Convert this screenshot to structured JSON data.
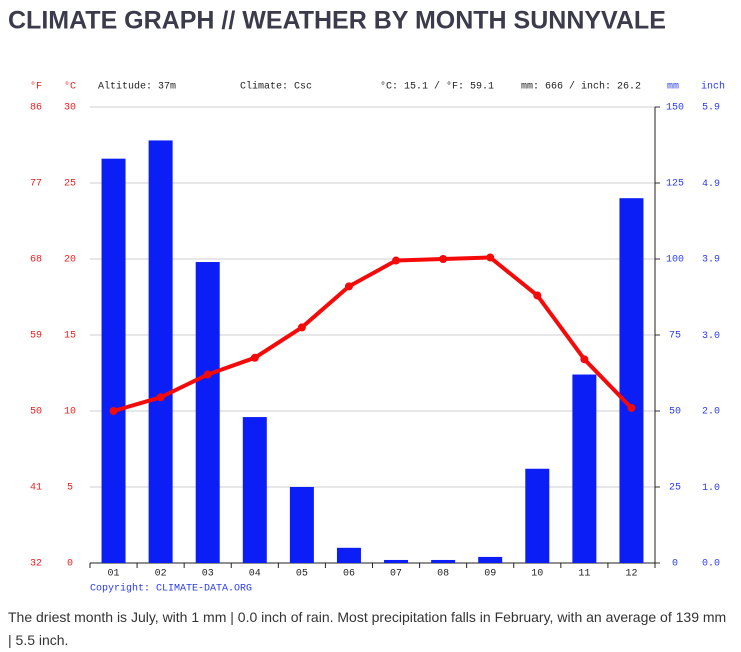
{
  "chart_data": {
    "type": "bar-line",
    "title": "CLIMATE GRAPH // WEATHER BY MONTH SUNNYVALE",
    "annotations": [
      "Altitude: 37m",
      "Climate: Csc",
      "°C: 15.1 / °F: 59.1",
      "mm: 666 / inch: 26.2"
    ],
    "y_label": "°C",
    "y2_label": "mm",
    "yf_label": "°F",
    "yinch_label": "inch",
    "categories": [
      "01",
      "02",
      "03",
      "04",
      "05",
      "06",
      "07",
      "08",
      "09",
      "10",
      "11",
      "12"
    ],
    "series": [
      {
        "type": "bar",
        "axis": "y2",
        "color": "#0a1ef5",
        "values": [
          133,
          139,
          99,
          48,
          25,
          5,
          1,
          1,
          2,
          31,
          62,
          120
        ]
      },
      {
        "type": "line",
        "axis": "y",
        "color": "#f50a0a",
        "values": [
          10.0,
          10.9,
          12.4,
          13.5,
          15.5,
          18.2,
          19.9,
          20.0,
          20.1,
          17.6,
          13.4,
          10.2
        ]
      }
    ],
    "ylim": [
      0,
      30
    ],
    "yticks": [
      0,
      5,
      10,
      15,
      20,
      25,
      30
    ],
    "y2lim": [
      0,
      150
    ],
    "y2ticks": [
      0,
      25,
      50,
      75,
      100,
      125,
      150
    ],
    "yf_lim": [
      32,
      86
    ],
    "yf_ticks": [
      32,
      41,
      50,
      59,
      68,
      77,
      86
    ],
    "yinch_lim": [
      0,
      5.906
    ],
    "yinch_ticks": [
      {
        "value": 0,
        "label": "0.0"
      },
      {
        "value": 0.98,
        "label": "1.0"
      },
      {
        "value": 1.97,
        "label": "2.0"
      },
      {
        "value": 2.95,
        "label": "3.0"
      },
      {
        "value": 3.94,
        "label": "3.9"
      },
      {
        "value": 4.92,
        "label": "4.9"
      },
      {
        "value": 5.91,
        "label": "5.9"
      }
    ],
    "grid": true,
    "copyright": "Copyright: CLIMATE-DATA.ORG"
  },
  "description": "The driest month is July, with 1 mm | 0.0 inch of rain. Most precipitation falls in February, with an average of 139 mm | 5.5 inch."
}
